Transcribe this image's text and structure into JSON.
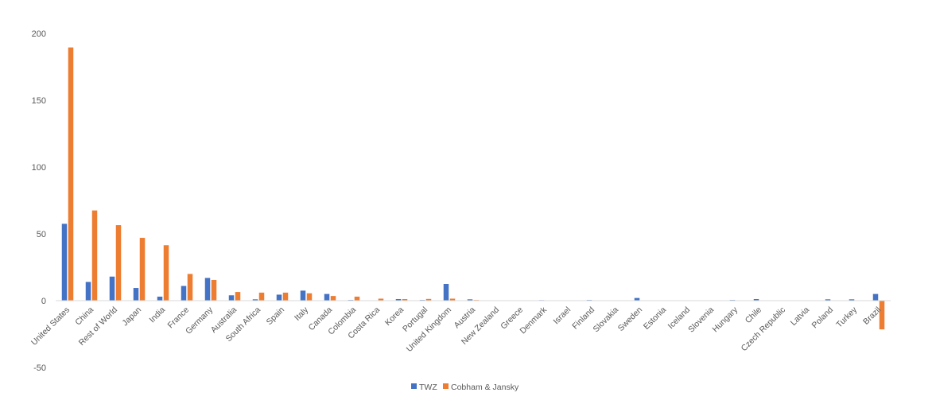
{
  "chart_data": {
    "type": "bar",
    "title": "",
    "xlabel": "",
    "ylabel": "",
    "ylim": [
      -50,
      200
    ],
    "yticks": [
      200,
      150,
      100,
      50,
      0,
      -50
    ],
    "grid": false,
    "legend_position": "bottom",
    "categories": [
      "United States",
      "China",
      "Rest of World",
      "Japan",
      "India",
      "France",
      "Germany",
      "Australia",
      "South Africa",
      "Spain",
      "Italy",
      "Canada",
      "Colombia",
      "Costa Rica",
      "Korea",
      "Portugal",
      "United Kingdom",
      "Austria",
      "New Zealand",
      "Greece",
      "Denmark",
      "Israel",
      "Finland",
      "Slovakia",
      "Sweden",
      "Estonia",
      "Iceland",
      "Slovenia",
      "Hungary",
      "Chile",
      "Czech Republic",
      "Latvia",
      "Poland",
      "Turkey",
      "Brazil"
    ],
    "series": [
      {
        "name": "TWZ",
        "color": "#4472C4",
        "values": [
          57.5,
          14,
          18,
          9.5,
          3,
          11,
          17,
          4,
          1,
          4.5,
          7.5,
          5,
          0.5,
          0.3,
          1.2,
          0.5,
          12.5,
          1,
          0.2,
          0.2,
          0.4,
          0.2,
          0.5,
          0.3,
          2,
          0.2,
          0.2,
          0.3,
          0.5,
          1.2,
          0.2,
          0.2,
          1,
          1,
          5
        ]
      },
      {
        "name": "Cobham & Jansky",
        "color": "#ED7D31",
        "values": [
          189.5,
          67.5,
          56.5,
          47,
          41.5,
          20,
          15.5,
          6.5,
          6,
          6,
          5.5,
          3.5,
          3,
          1.5,
          1.2,
          1.3,
          1.5,
          0.5,
          0.3,
          0.3,
          0.3,
          0.2,
          0.3,
          0.2,
          0.3,
          0.2,
          0.2,
          0.2,
          0.3,
          0.2,
          0.2,
          0.2,
          0.3,
          0.3,
          -21.5
        ]
      }
    ]
  }
}
